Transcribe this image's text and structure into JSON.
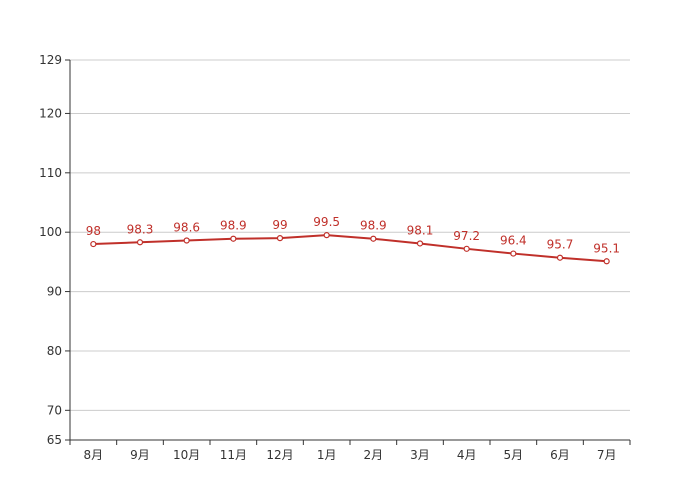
{
  "chart_data": {
    "type": "line",
    "categories": [
      "8月",
      "9月",
      "10月",
      "11月",
      "12月",
      "1月",
      "2月",
      "3月",
      "4月",
      "5月",
      "6月",
      "7月"
    ],
    "series": [
      {
        "values": [
          98,
          98.3,
          98.6,
          98.9,
          99,
          99.5,
          98.9,
          98.1,
          97.2,
          96.4,
          95.7,
          95.1
        ]
      }
    ],
    "value_labels": [
      "98",
      "98.3",
      "98.6",
      "98.9",
      "99",
      "99.5",
      "98.9",
      "98.1",
      "97.2",
      "96.4",
      "95.7",
      "95.1"
    ],
    "y_ticks": [
      65,
      70,
      80,
      90,
      100,
      110,
      120,
      129
    ],
    "y_tick_labels": [
      "65",
      "70",
      "80",
      "90",
      "100",
      "110",
      "120",
      "129"
    ],
    "ylim": [
      65,
      129
    ],
    "grid": true,
    "colors": {
      "line": "#c0302a",
      "grid": "#cccccc",
      "axis": "#333333"
    }
  }
}
